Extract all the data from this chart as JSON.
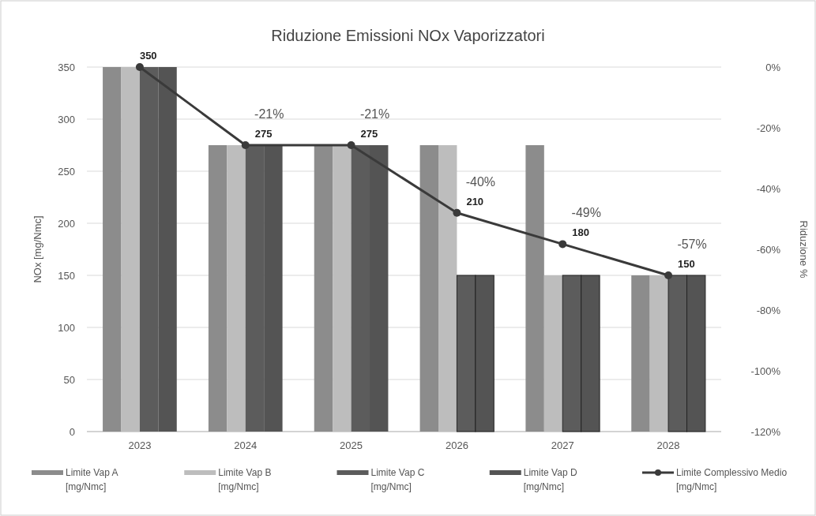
{
  "chart_data": {
    "type": "bar",
    "title": "Riduzione Emissioni NOx Vaporizzatori",
    "ylabel": "NOx [mg/Nmc]",
    "y2label": "Riduzione %",
    "categories": [
      "2023",
      "2024",
      "2025",
      "2026",
      "2027",
      "2028"
    ],
    "series": [
      {
        "name": "Limite Vap A [mg/Nmc]",
        "color": "#8c8c8c",
        "values": [
          350,
          275,
          275,
          275,
          275,
          150
        ]
      },
      {
        "name": "Limite Vap B [mg/Nmc]",
        "color": "#bdbdbd",
        "values": [
          350,
          275,
          275,
          275,
          150,
          150
        ]
      },
      {
        "name": "Limite Vap C [mg/Nmc]",
        "color": "#5c5c5c",
        "values": [
          350,
          275,
          275,
          150,
          150,
          150
        ]
      },
      {
        "name": "Limite Vap D [mg/Nmc]",
        "color": "#545454",
        "values": [
          350,
          275,
          275,
          150,
          150,
          150
        ]
      },
      {
        "name": "Limite Complessivo Medio [mg/Nmc]",
        "type": "line",
        "color": "#3a3a3a",
        "marker": "circle",
        "values": [
          350,
          275,
          275,
          210,
          180,
          150
        ],
        "value_labels": [
          "350",
          "275",
          "275",
          "210",
          "180",
          "150"
        ]
      }
    ],
    "ylim": [
      0,
      350
    ],
    "yticks": [
      0,
      50,
      100,
      150,
      200,
      250,
      300,
      350
    ],
    "y2lim": [
      -120,
      0
    ],
    "y2ticks": [
      {
        "value": -120,
        "label": "-120%"
      },
      {
        "value": -100,
        "label": "-100%"
      },
      {
        "value": -80,
        "label": "-80%"
      },
      {
        "value": -60,
        "label": "-60%"
      },
      {
        "value": -40,
        "label": "-40%"
      },
      {
        "value": -20,
        "label": "-20%"
      },
      {
        "value": 0,
        "label": "0%"
      }
    ],
    "annotations": [
      {
        "text": "-21%",
        "x": "2024",
        "y": 275
      },
      {
        "text": "-21%",
        "x": "2025",
        "y": 275
      },
      {
        "text": "-40%",
        "x": "2026",
        "y": 210
      },
      {
        "text": "-49%",
        "x": "2027",
        "y": 180
      },
      {
        "text": "-57%",
        "x": "2028",
        "y": 150
      }
    ],
    "grid": "y",
    "legend": "bottom"
  }
}
